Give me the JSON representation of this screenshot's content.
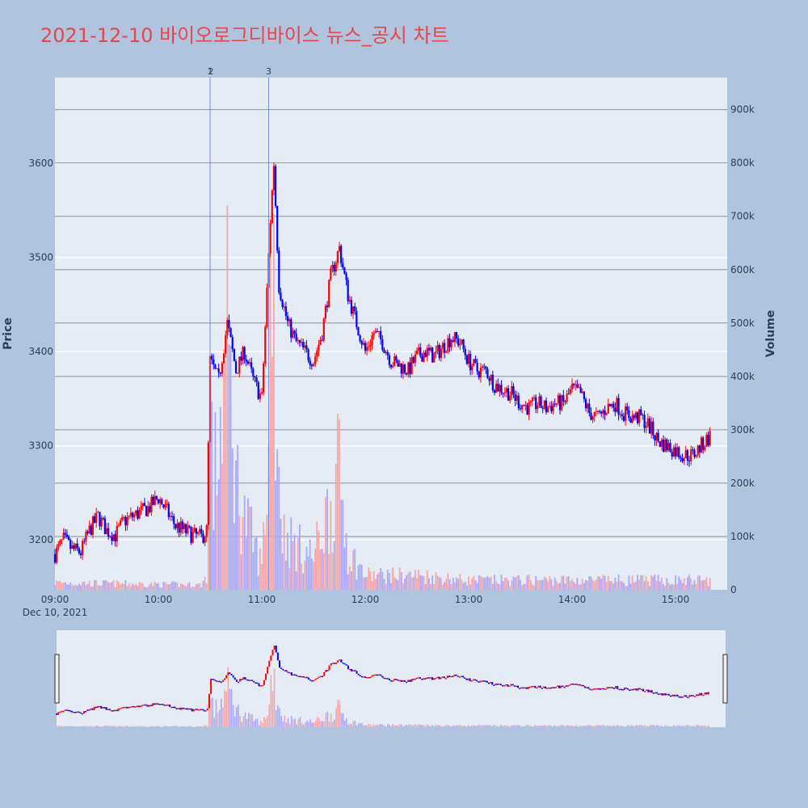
{
  "title": "2021-12-10 바이오로그디바이스 뉴스_공시 차트",
  "colors": {
    "up": "#ff0000",
    "down": "#0000ff",
    "vol_up": "#f7a6a6",
    "vol_down": "#a8a8ff",
    "title": "#e8454f",
    "bg": "#b0c4de",
    "plot": "#e5ecf6",
    "news": "#6f8fd8"
  },
  "chart_data": {
    "type": "candlestick",
    "date_label": "Dec 10, 2021",
    "x_ticks": [
      "09:00",
      "10:00",
      "11:00",
      "12:00",
      "13:00",
      "14:00",
      "15:00"
    ],
    "y_label": "Price",
    "y2_label": "Volume",
    "y_ticks": [
      3200,
      3300,
      3400,
      3500,
      3600
    ],
    "y2_ticks": [
      "0",
      "100k",
      "200k",
      "300k",
      "400k",
      "500k",
      "600k",
      "700k",
      "800k",
      "900k"
    ],
    "y_range": [
      3147,
      3691
    ],
    "y2_range": [
      0,
      960000
    ],
    "x_range": [
      "09:00",
      "15:30"
    ],
    "news_markers": [
      {
        "label": "1",
        "time": "10:30"
      },
      {
        "label": "2",
        "time": "10:30"
      },
      {
        "label": "3",
        "time": "11:04"
      }
    ],
    "price_anchors": [
      [
        "09:00",
        3185
      ],
      [
        "09:05",
        3200
      ],
      [
        "09:10",
        3190
      ],
      [
        "09:15",
        3187
      ],
      [
        "09:20",
        3210
      ],
      [
        "09:25",
        3225
      ],
      [
        "09:30",
        3210
      ],
      [
        "09:35",
        3205
      ],
      [
        "09:40",
        3220
      ],
      [
        "09:45",
        3225
      ],
      [
        "09:50",
        3230
      ],
      [
        "09:55",
        3235
      ],
      [
        "10:00",
        3245
      ],
      [
        "10:05",
        3230
      ],
      [
        "10:10",
        3215
      ],
      [
        "10:15",
        3210
      ],
      [
        "10:20",
        3205
      ],
      [
        "10:25",
        3203
      ],
      [
        "10:28",
        3210
      ],
      [
        "10:30",
        3390
      ],
      [
        "10:35",
        3370
      ],
      [
        "10:40",
        3430
      ],
      [
        "10:45",
        3380
      ],
      [
        "10:50",
        3400
      ],
      [
        "10:55",
        3370
      ],
      [
        "11:00",
        3350
      ],
      [
        "11:05",
        3540
      ],
      [
        "11:07",
        3600
      ],
      [
        "11:10",
        3470
      ],
      [
        "11:15",
        3430
      ],
      [
        "11:20",
        3410
      ],
      [
        "11:25",
        3400
      ],
      [
        "11:30",
        3390
      ],
      [
        "11:35",
        3420
      ],
      [
        "11:40",
        3480
      ],
      [
        "11:45",
        3510
      ],
      [
        "11:50",
        3460
      ],
      [
        "11:55",
        3430
      ],
      [
        "12:00",
        3400
      ],
      [
        "12:05",
        3420
      ],
      [
        "12:10",
        3410
      ],
      [
        "12:15",
        3390
      ],
      [
        "12:20",
        3385
      ],
      [
        "12:25",
        3380
      ],
      [
        "12:30",
        3395
      ],
      [
        "12:35",
        3400
      ],
      [
        "12:40",
        3395
      ],
      [
        "12:45",
        3405
      ],
      [
        "12:50",
        3415
      ],
      [
        "12:55",
        3410
      ],
      [
        "13:00",
        3390
      ],
      [
        "13:05",
        3380
      ],
      [
        "13:10",
        3380
      ],
      [
        "13:15",
        3365
      ],
      [
        "13:20",
        3360
      ],
      [
        "13:25",
        3355
      ],
      [
        "13:30",
        3345
      ],
      [
        "13:35",
        3340
      ],
      [
        "13:40",
        3345
      ],
      [
        "13:45",
        3340
      ],
      [
        "13:50",
        3345
      ],
      [
        "13:55",
        3345
      ],
      [
        "14:00",
        3360
      ],
      [
        "14:05",
        3355
      ],
      [
        "14:10",
        3335
      ],
      [
        "14:15",
        3330
      ],
      [
        "14:20",
        3340
      ],
      [
        "14:25",
        3345
      ],
      [
        "14:30",
        3335
      ],
      [
        "14:35",
        3330
      ],
      [
        "14:40",
        3330
      ],
      [
        "14:45",
        3320
      ],
      [
        "14:50",
        3305
      ],
      [
        "14:55",
        3300
      ],
      [
        "15:00",
        3295
      ],
      [
        "15:05",
        3290
      ],
      [
        "15:10",
        3290
      ],
      [
        "15:15",
        3300
      ],
      [
        "15:20",
        3310
      ]
    ],
    "volume_anchors": [
      [
        "09:00",
        15000
      ],
      [
        "10:25",
        10000
      ],
      [
        "10:28",
        30000
      ],
      [
        "10:30",
        380000
      ],
      [
        "10:32",
        200000
      ],
      [
        "10:40",
        510000
      ],
      [
        "10:45",
        230000
      ],
      [
        "10:50",
        150000
      ],
      [
        "11:00",
        50000
      ],
      [
        "11:04",
        280000
      ],
      [
        "11:06",
        910000
      ],
      [
        "11:08",
        420000
      ],
      [
        "11:12",
        120000
      ],
      [
        "11:20",
        90000
      ],
      [
        "11:30",
        70000
      ],
      [
        "11:40",
        180000
      ],
      [
        "11:45",
        240000
      ],
      [
        "11:50",
        80000
      ],
      [
        "12:00",
        30000
      ],
      [
        "12:30",
        30000
      ],
      [
        "13:00",
        20000
      ],
      [
        "15:20",
        20000
      ],
      [
        "15:30",
        100000
      ]
    ]
  }
}
